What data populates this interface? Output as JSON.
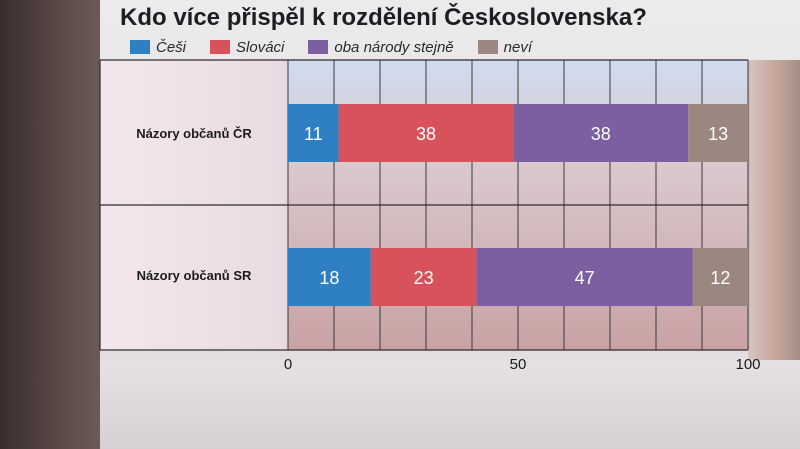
{
  "title": "Kdo více přispěl k rozdělení Československa?",
  "legend": [
    {
      "label": "Češi",
      "color": "#2f7fc3"
    },
    {
      "label": "Slováci",
      "color": "#d8525c"
    },
    {
      "label": "oba národy stejně",
      "color": "#7b5fa0"
    },
    {
      "label": "neví",
      "color": "#9b8680"
    }
  ],
  "chart_data": {
    "type": "bar",
    "orientation": "horizontal",
    "stacked": true,
    "title": "Kdo více přispěl k rozdělení Československa?",
    "categories": [
      "Názory občanů ČR",
      "Názory občanů SR"
    ],
    "series": [
      {
        "name": "Češi",
        "color": "#2f7fc3",
        "values": [
          11,
          18
        ]
      },
      {
        "name": "Slováci",
        "color": "#d8525c",
        "values": [
          38,
          23
        ]
      },
      {
        "name": "oba národy stejně",
        "color": "#7b5fa0",
        "values": [
          38,
          47
        ]
      },
      {
        "name": "neví",
        "color": "#9b8680",
        "values": [
          13,
          12
        ]
      }
    ],
    "xlim": [
      0,
      100
    ],
    "xticks": [
      0,
      50,
      100
    ],
    "grid": true,
    "legend_position": "top"
  }
}
